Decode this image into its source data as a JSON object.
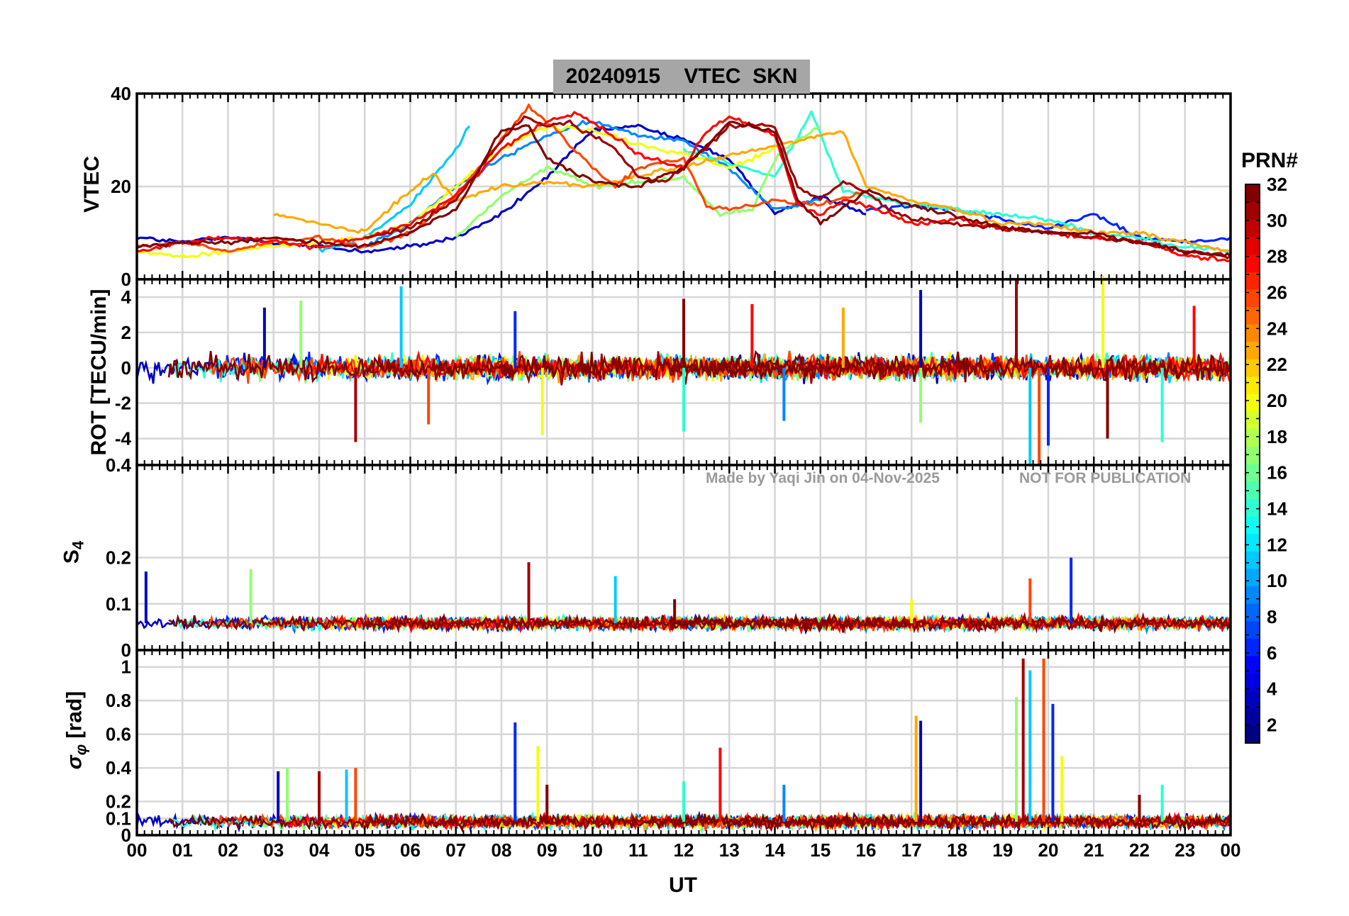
{
  "title": "20240915    VTEC  SKN",
  "watermark_left": "Made by Yaqi Jin on 04-Nov-2025",
  "watermark_right": "NOT FOR PUBLICATION",
  "colorbar": {
    "title": "PRN#",
    "ticks": [
      "32",
      "30",
      "28",
      "26",
      "24",
      "22",
      "20",
      "18",
      "16",
      "14",
      "12",
      "10",
      "8",
      "6",
      "4",
      "2"
    ],
    "colormap": "jet",
    "range": [
      1,
      32
    ]
  },
  "chart_data": [
    {
      "type": "line",
      "panel": "vtec",
      "ylabel": "VTEC",
      "ylim": [
        0,
        40
      ],
      "yticks": [
        "0",
        "20",
        "40"
      ],
      "xlim": [
        0,
        24
      ],
      "grid": true,
      "series": [
        {
          "name": "PRN 3",
          "prn": 3,
          "x": [
            0,
            1,
            2,
            3,
            4,
            5,
            6,
            7,
            8,
            9,
            10,
            11,
            12,
            13,
            14,
            15,
            16
          ],
          "y": [
            9,
            8,
            9,
            8,
            7,
            6,
            7,
            9,
            14,
            22,
            32,
            33,
            30,
            26,
            14,
            18,
            14
          ]
        },
        {
          "name": "PRN 6",
          "prn": 6,
          "x": [
            16,
            17,
            18,
            19,
            20,
            21,
            22,
            23,
            24
          ],
          "y": [
            15,
            16,
            15,
            13,
            11,
            14,
            9,
            8,
            9
          ]
        },
        {
          "name": "PRN 9",
          "prn": 9,
          "x": [
            5,
            6,
            7,
            8,
            9,
            10,
            11,
            12,
            13,
            14,
            15
          ],
          "y": [
            7,
            12,
            20,
            26,
            31,
            34,
            31,
            30,
            24,
            15,
            17
          ]
        },
        {
          "name": "PRN 11",
          "prn": 11,
          "x": [
            4,
            5,
            6,
            7,
            7.3
          ],
          "y": [
            6,
            9,
            16,
            28,
            33
          ]
        },
        {
          "name": "PRN 14",
          "prn": 14,
          "x": [
            12,
            13,
            14,
            14.8,
            15.5,
            16,
            17,
            18,
            19,
            20,
            21,
            22,
            23,
            24
          ],
          "y": [
            28,
            25,
            22,
            36,
            19,
            18,
            16,
            15,
            14,
            13,
            10,
            9,
            7,
            6
          ]
        },
        {
          "name": "PRN 17",
          "prn": 17,
          "x": [
            7,
            8,
            9,
            9.6,
            10,
            12,
            12.8,
            13.5,
            14,
            14.5,
            15
          ],
          "y": [
            9,
            18,
            24,
            22,
            20,
            22,
            14,
            15,
            26,
            30,
            33
          ]
        },
        {
          "name": "PRN 20",
          "prn": 20,
          "x": [
            0,
            1,
            2,
            3,
            4,
            5,
            6,
            7,
            8,
            9,
            10,
            11,
            12,
            13,
            14
          ],
          "y": [
            6,
            5,
            6,
            7,
            8,
            9,
            12,
            20,
            28,
            33,
            32,
            29,
            27,
            24,
            28
          ]
        },
        {
          "name": "PRN 23",
          "prn": 23,
          "x": [
            3,
            4,
            5,
            5.5,
            6,
            6.5,
            7,
            8,
            9,
            10,
            15.5,
            16,
            17,
            18,
            19,
            20,
            21,
            22,
            23,
            24
          ],
          "y": [
            14,
            12,
            10,
            15,
            19,
            23,
            17,
            20,
            21,
            20,
            32,
            20,
            17,
            15,
            12,
            12,
            10,
            10,
            8,
            6
          ]
        },
        {
          "name": "PRN 26",
          "prn": 26,
          "x": [
            0,
            1,
            2,
            3,
            4,
            5,
            6,
            7,
            8,
            8.6,
            9,
            10,
            10.5,
            11,
            12,
            12.5,
            13,
            14,
            15,
            16
          ],
          "y": [
            7,
            8,
            6,
            8,
            9,
            7,
            10,
            18,
            30,
            37,
            34,
            24,
            20,
            24,
            26,
            16,
            15,
            17,
            16,
            19
          ]
        },
        {
          "name": "PRN 28",
          "prn": 28,
          "x": [
            0,
            1,
            2,
            3,
            4,
            5,
            6,
            7,
            8,
            9,
            9.6,
            10,
            11,
            12,
            12.5,
            13,
            14,
            14.5,
            15,
            15.5,
            16,
            17,
            18,
            19,
            20,
            21,
            22,
            23,
            24
          ],
          "y": [
            6,
            8,
            9,
            8,
            7,
            9,
            12,
            18,
            28,
            34,
            36,
            34,
            27,
            24,
            32,
            35,
            31,
            16,
            14,
            17,
            16,
            12,
            13,
            11,
            10,
            9,
            8,
            5,
            4
          ]
        },
        {
          "name": "PRN 31",
          "prn": 31,
          "x": [
            5,
            6,
            7,
            8,
            8.5,
            9,
            9.5,
            10,
            10.5,
            11,
            11.6,
            12,
            13,
            14,
            14.5,
            15,
            15.5,
            16,
            16.5,
            17,
            18,
            19,
            20,
            21,
            22,
            23,
            24
          ],
          "y": [
            9,
            11,
            17,
            30,
            35,
            33,
            34,
            31,
            28,
            22,
            21,
            24,
            33,
            33,
            20,
            17,
            21,
            19,
            15,
            13,
            12,
            11,
            10,
            9,
            8,
            6,
            5
          ]
        },
        {
          "name": "PRN 32",
          "prn": 32,
          "x": [
            0,
            1,
            2,
            3,
            4,
            5,
            6,
            7,
            8,
            8.6,
            9,
            10,
            11,
            12,
            13,
            14,
            14.5,
            15,
            16,
            17,
            19,
            20,
            21,
            22,
            23,
            24
          ],
          "y": [
            7,
            8,
            8,
            9,
            8,
            7,
            10,
            15,
            32,
            33,
            26,
            21,
            20,
            24,
            34,
            32,
            17,
            12,
            19,
            16,
            11,
            10,
            10,
            8,
            6,
            5
          ]
        }
      ]
    },
    {
      "type": "line",
      "panel": "rot",
      "ylabel": "ROT [TECU/min]",
      "ylim": [
        -5.5,
        5
      ],
      "yticks": [
        "-4",
        "-2",
        "0",
        "2",
        "4"
      ],
      "xlim": [
        0,
        24
      ],
      "grid": true,
      "description_of_values": "Noise-like fluctuations about 0 TECU/min; typical amplitude ±0.5, spikes to ±4.",
      "spikes": [
        {
          "x": 2.8,
          "y": 3.4
        },
        {
          "x": 3.6,
          "y": 3.8
        },
        {
          "x": 4.8,
          "y": -4.2
        },
        {
          "x": 5.8,
          "y": 4.6
        },
        {
          "x": 6.4,
          "y": -3.2
        },
        {
          "x": 8.3,
          "y": 3.2
        },
        {
          "x": 8.9,
          "y": -3.8
        },
        {
          "x": 12.0,
          "y": 3.9
        },
        {
          "x": 12.0,
          "y": -3.6
        },
        {
          "x": 13.5,
          "y": 3.6
        },
        {
          "x": 14.2,
          "y": -3.0
        },
        {
          "x": 15.5,
          "y": 3.4
        },
        {
          "x": 17.2,
          "y": 4.4
        },
        {
          "x": 17.2,
          "y": -3.1
        },
        {
          "x": 19.3,
          "y": 5.0
        },
        {
          "x": 19.6,
          "y": -5.5
        },
        {
          "x": 19.8,
          "y": -5.5
        },
        {
          "x": 20.0,
          "y": -4.4
        },
        {
          "x": 21.2,
          "y": 5.2
        },
        {
          "x": 21.3,
          "y": -4.0
        },
        {
          "x": 22.5,
          "y": -4.2
        },
        {
          "x": 23.2,
          "y": 3.5
        }
      ]
    },
    {
      "type": "line",
      "panel": "s4",
      "ylabel": "S4",
      "ylim": [
        0,
        0.4
      ],
      "yticks": [
        "0",
        "0.1",
        "0.2",
        "0.4"
      ],
      "xlim": [
        0,
        24
      ],
      "grid": true,
      "description_of_values": "Baseline around 0.05–0.07 for all PRNs with isolated spikes.",
      "spikes": [
        {
          "x": 0.2,
          "y": 0.17
        },
        {
          "x": 2.5,
          "y": 0.175
        },
        {
          "x": 8.6,
          "y": 0.19
        },
        {
          "x": 10.5,
          "y": 0.16
        },
        {
          "x": 19.6,
          "y": 0.155
        },
        {
          "x": 20.5,
          "y": 0.2
        },
        {
          "x": 17.0,
          "y": 0.11
        },
        {
          "x": 11.8,
          "y": 0.11
        }
      ]
    },
    {
      "type": "line",
      "panel": "sigma_phi",
      "ylabel": "σ_φ [rad]",
      "ylim": [
        0,
        1.1
      ],
      "yticks": [
        "0",
        "0.1",
        "0.2",
        "0.4",
        "0.6",
        "0.8",
        "1"
      ],
      "xlim": [
        0,
        24
      ],
      "xticks": [
        "00",
        "01",
        "02",
        "03",
        "04",
        "05",
        "06",
        "07",
        "08",
        "09",
        "10",
        "11",
        "12",
        "13",
        "14",
        "15",
        "16",
        "17",
        "18",
        "19",
        "20",
        "21",
        "22",
        "23",
        "00"
      ],
      "xlabel": "UT",
      "grid": true,
      "description_of_values": "Baseline near 0.05–0.15 rad; bursts to ~0.4 at 03–05 UT, 0.67 at ~08.3 UT, 0.5 at ~12.8 UT, 0.7 at ~17.1 UT, ~1.0 at 19.4–20.0 UT.",
      "spikes": [
        {
          "x": 3.1,
          "y": 0.38
        },
        {
          "x": 3.3,
          "y": 0.4
        },
        {
          "x": 4.0,
          "y": 0.38
        },
        {
          "x": 4.6,
          "y": 0.39
        },
        {
          "x": 4.8,
          "y": 0.4
        },
        {
          "x": 8.3,
          "y": 0.67
        },
        {
          "x": 8.8,
          "y": 0.53
        },
        {
          "x": 9.0,
          "y": 0.3
        },
        {
          "x": 12.0,
          "y": 0.32
        },
        {
          "x": 12.8,
          "y": 0.52
        },
        {
          "x": 14.2,
          "y": 0.3
        },
        {
          "x": 17.1,
          "y": 0.71
        },
        {
          "x": 17.2,
          "y": 0.68
        },
        {
          "x": 19.3,
          "y": 0.82
        },
        {
          "x": 19.45,
          "y": 1.05
        },
        {
          "x": 19.6,
          "y": 0.98
        },
        {
          "x": 19.9,
          "y": 1.05
        },
        {
          "x": 20.1,
          "y": 0.78
        },
        {
          "x": 20.3,
          "y": 0.47
        },
        {
          "x": 22.0,
          "y": 0.24
        },
        {
          "x": 22.5,
          "y": 0.3
        }
      ]
    }
  ]
}
